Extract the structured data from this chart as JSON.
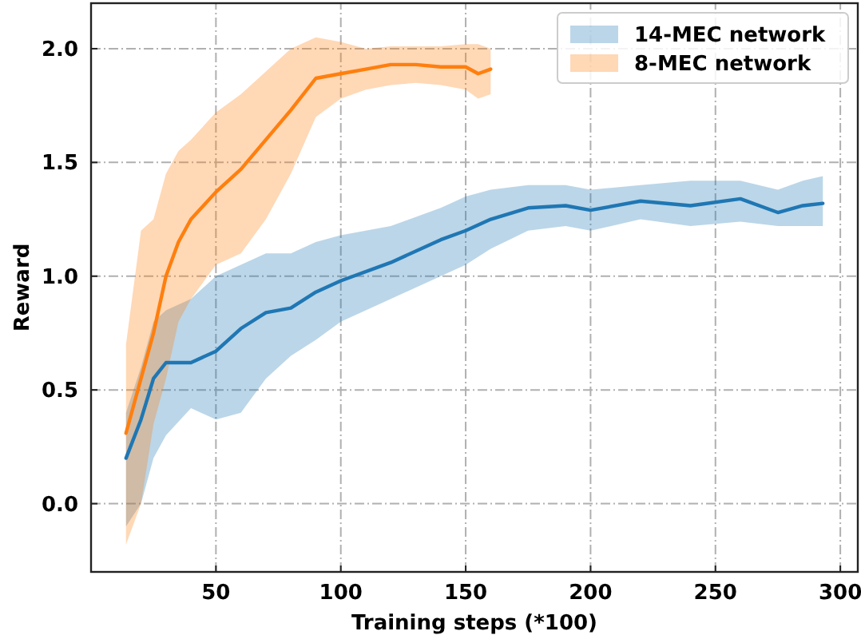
{
  "chart_data": {
    "type": "line",
    "xlabel": "Training steps (*100)",
    "ylabel": "Reward",
    "xlim": [
      0,
      307
    ],
    "ylim": [
      -0.3,
      2.2
    ],
    "xticks": [
      50,
      100,
      150,
      200,
      250,
      300
    ],
    "yticks": [
      {
        "value": 0,
        "label": "0.0"
      },
      {
        "value": 0.5,
        "label": "0.5"
      },
      {
        "value": 1,
        "label": "1.0"
      },
      {
        "value": 1.5,
        "label": "1.5"
      },
      {
        "value": 2,
        "label": "2.0"
      }
    ],
    "grid": true,
    "legend": "top right",
    "line_style": "solid",
    "series": [
      {
        "name": "14-MEC network",
        "color": "#1f77b4",
        "x": [
          14,
          20,
          25,
          30,
          40,
          50,
          60,
          70,
          80,
          90,
          100,
          120,
          140,
          150,
          160,
          175,
          190,
          200,
          220,
          240,
          260,
          275,
          285,
          293
        ],
        "values": [
          0.2,
          0.37,
          0.55,
          0.62,
          0.62,
          0.67,
          0.77,
          0.84,
          0.86,
          0.93,
          0.98,
          1.06,
          1.16,
          1.2,
          1.25,
          1.3,
          1.31,
          1.29,
          1.33,
          1.31,
          1.34,
          1.28,
          1.31,
          1.32
        ],
        "lower": [
          -0.1,
          0.0,
          0.2,
          0.3,
          0.42,
          0.37,
          0.4,
          0.55,
          0.65,
          0.72,
          0.8,
          0.9,
          1.0,
          1.05,
          1.12,
          1.2,
          1.22,
          1.2,
          1.25,
          1.22,
          1.24,
          1.22,
          1.22,
          1.22
        ],
        "upper": [
          0.4,
          0.6,
          0.8,
          0.85,
          0.9,
          1.0,
          1.05,
          1.1,
          1.1,
          1.15,
          1.18,
          1.22,
          1.3,
          1.35,
          1.38,
          1.4,
          1.4,
          1.38,
          1.4,
          1.42,
          1.42,
          1.38,
          1.42,
          1.44
        ]
      },
      {
        "name": "8-MEC network",
        "color": "#ff7f0e",
        "x": [
          14,
          20,
          25,
          30,
          35,
          40,
          50,
          60,
          70,
          80,
          90,
          100,
          110,
          120,
          130,
          140,
          150,
          155,
          160
        ],
        "values": [
          0.31,
          0.55,
          0.75,
          1.0,
          1.15,
          1.25,
          1.37,
          1.47,
          1.6,
          1.73,
          1.87,
          1.89,
          1.91,
          1.93,
          1.93,
          1.92,
          1.92,
          1.89,
          1.91
        ],
        "lower": [
          -0.18,
          0.0,
          0.35,
          0.55,
          0.8,
          0.9,
          1.05,
          1.1,
          1.25,
          1.45,
          1.7,
          1.78,
          1.82,
          1.84,
          1.85,
          1.84,
          1.82,
          1.78,
          1.8
        ],
        "upper": [
          0.7,
          1.2,
          1.25,
          1.45,
          1.55,
          1.6,
          1.72,
          1.8,
          1.9,
          2.0,
          2.05,
          2.03,
          2.0,
          2.01,
          2.01,
          2.01,
          2.02,
          2.02,
          2.0
        ]
      }
    ]
  }
}
